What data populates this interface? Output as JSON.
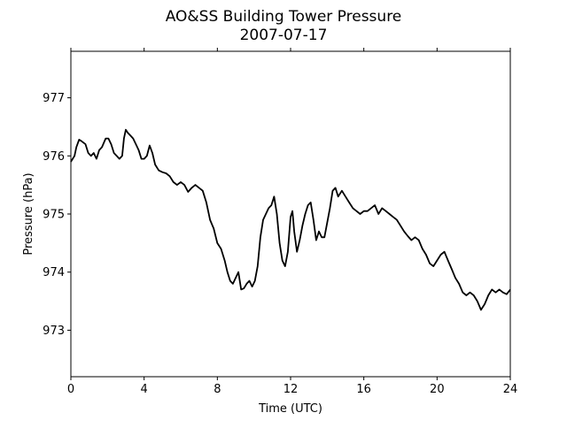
{
  "chart_data": {
    "type": "line",
    "title": "AO&SS Building Tower Pressure",
    "subtitle": "2007-07-17",
    "xlabel": "Time (UTC)",
    "ylabel": "Pressure (hPa)",
    "xlim": [
      0,
      24
    ],
    "ylim": [
      972.2,
      977.8
    ],
    "xticks": [
      0,
      4,
      8,
      12,
      16,
      20,
      24
    ],
    "yticks": [
      973,
      974,
      975,
      976,
      977
    ],
    "grid": false,
    "legend": "none",
    "line_color": "#000000",
    "series": [
      {
        "x": [
          0.0,
          0.2,
          0.3,
          0.45,
          0.6,
          0.8,
          0.95,
          1.1,
          1.25,
          1.4,
          1.55,
          1.7,
          1.9,
          2.05,
          2.2,
          2.35,
          2.5,
          2.65,
          2.8,
          2.9,
          3.0,
          3.1,
          3.25,
          3.4,
          3.55,
          3.7,
          3.85,
          4.0,
          4.15,
          4.3,
          4.45,
          4.6,
          4.8,
          5.0,
          5.2,
          5.4,
          5.6,
          5.8,
          6.0,
          6.2,
          6.4,
          6.6,
          6.8,
          7.0,
          7.2,
          7.4,
          7.6,
          7.8,
          8.0,
          8.2,
          8.4,
          8.55,
          8.7,
          8.85,
          9.0,
          9.15,
          9.3,
          9.45,
          9.6,
          9.75,
          9.9,
          10.05,
          10.2,
          10.35,
          10.5,
          10.65,
          10.8,
          10.95,
          11.1,
          11.25,
          11.4,
          11.55,
          11.7,
          11.85,
          12.0,
          12.1,
          12.2,
          12.35,
          12.5,
          12.65,
          12.8,
          12.95,
          13.1,
          13.25,
          13.4,
          13.55,
          13.7,
          13.85,
          14.0,
          14.15,
          14.3,
          14.45,
          14.6,
          14.8,
          15.0,
          15.2,
          15.4,
          15.6,
          15.8,
          16.0,
          16.2,
          16.4,
          16.6,
          16.8,
          17.0,
          17.2,
          17.4,
          17.6,
          17.8,
          18.0,
          18.2,
          18.4,
          18.6,
          18.8,
          19.0,
          19.2,
          19.4,
          19.6,
          19.8,
          20.0,
          20.2,
          20.4,
          20.6,
          20.8,
          21.0,
          21.2,
          21.4,
          21.6,
          21.8,
          22.0,
          22.2,
          22.4,
          22.6,
          22.8,
          23.0,
          23.2,
          23.4,
          23.6,
          23.8,
          24.0
        ],
        "values": [
          975.9,
          976.0,
          976.15,
          976.28,
          976.25,
          976.2,
          976.05,
          976.0,
          976.05,
          975.95,
          976.1,
          976.15,
          976.3,
          976.3,
          976.2,
          976.05,
          976.0,
          975.95,
          976.0,
          976.3,
          976.45,
          976.4,
          976.35,
          976.3,
          976.2,
          976.1,
          975.95,
          975.95,
          976.0,
          976.18,
          976.05,
          975.85,
          975.75,
          975.72,
          975.7,
          975.65,
          975.55,
          975.5,
          975.55,
          975.5,
          975.38,
          975.45,
          975.5,
          975.45,
          975.4,
          975.2,
          974.9,
          974.75,
          974.5,
          974.4,
          974.2,
          974.0,
          973.85,
          973.8,
          973.9,
          974.0,
          973.7,
          973.72,
          973.8,
          973.85,
          973.75,
          973.85,
          974.1,
          974.6,
          974.9,
          975.0,
          975.1,
          975.15,
          975.3,
          975.0,
          974.5,
          974.2,
          974.1,
          974.35,
          974.95,
          975.05,
          974.7,
          974.35,
          974.55,
          974.8,
          975.0,
          975.15,
          975.2,
          974.9,
          974.55,
          974.7,
          974.6,
          974.6,
          974.85,
          975.1,
          975.4,
          975.45,
          975.3,
          975.4,
          975.3,
          975.2,
          975.1,
          975.05,
          975.0,
          975.05,
          975.05,
          975.1,
          975.15,
          975.0,
          975.1,
          975.05,
          975.0,
          974.95,
          974.9,
          974.8,
          974.7,
          974.62,
          974.55,
          974.6,
          974.55,
          974.4,
          974.3,
          974.15,
          974.1,
          974.2,
          974.3,
          974.35,
          974.2,
          974.05,
          973.9,
          973.8,
          973.65,
          973.6,
          973.65,
          973.6,
          973.5,
          973.35,
          973.45,
          973.6,
          973.7,
          973.65,
          973.7,
          973.65,
          973.62,
          973.7
        ]
      }
    ]
  }
}
